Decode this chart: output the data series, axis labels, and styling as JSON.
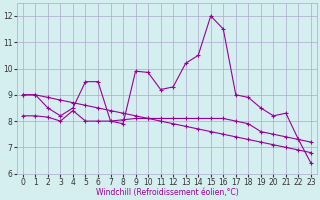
{
  "x": [
    0,
    1,
    2,
    3,
    4,
    5,
    6,
    7,
    8,
    9,
    10,
    11,
    12,
    13,
    14,
    15,
    16,
    17,
    18,
    19,
    20,
    21,
    22,
    23
  ],
  "line1": [
    9.0,
    9.0,
    8.5,
    8.2,
    8.5,
    9.5,
    9.5,
    8.0,
    7.9,
    9.9,
    9.85,
    9.2,
    9.3,
    10.2,
    10.5,
    12.0,
    11.5,
    9.0,
    8.9,
    8.5,
    8.2,
    8.3,
    7.3,
    6.4
  ],
  "line2": [
    8.2,
    8.2,
    8.15,
    8.0,
    8.4,
    8.0,
    8.0,
    8.0,
    8.05,
    8.1,
    8.1,
    8.1,
    8.1,
    8.1,
    8.1,
    8.1,
    8.1,
    8.0,
    7.9,
    7.6,
    7.5,
    7.4,
    7.3,
    7.2
  ],
  "line3": [
    9.0,
    9.0,
    8.9,
    8.8,
    8.7,
    8.6,
    8.5,
    8.4,
    8.3,
    8.2,
    8.1,
    8.0,
    7.9,
    7.8,
    7.7,
    7.6,
    7.5,
    7.4,
    7.3,
    7.2,
    7.1,
    7.0,
    6.9,
    6.8
  ],
  "color": "#990099",
  "bg_color": "#d5eef0",
  "grid_color": "#aaaacc",
  "xlabel": "Windchill (Refroidissement éolien,°C)",
  "ylim": [
    6,
    12.5
  ],
  "xlim": [
    -0.5,
    23.5
  ],
  "yticks": [
    6,
    7,
    8,
    9,
    10,
    11,
    12
  ],
  "xticks": [
    0,
    1,
    2,
    3,
    4,
    5,
    6,
    7,
    8,
    9,
    10,
    11,
    12,
    13,
    14,
    15,
    16,
    17,
    18,
    19,
    20,
    21,
    22,
    23
  ],
  "tick_fontsize": 5.5,
  "xlabel_fontsize": 5.5
}
